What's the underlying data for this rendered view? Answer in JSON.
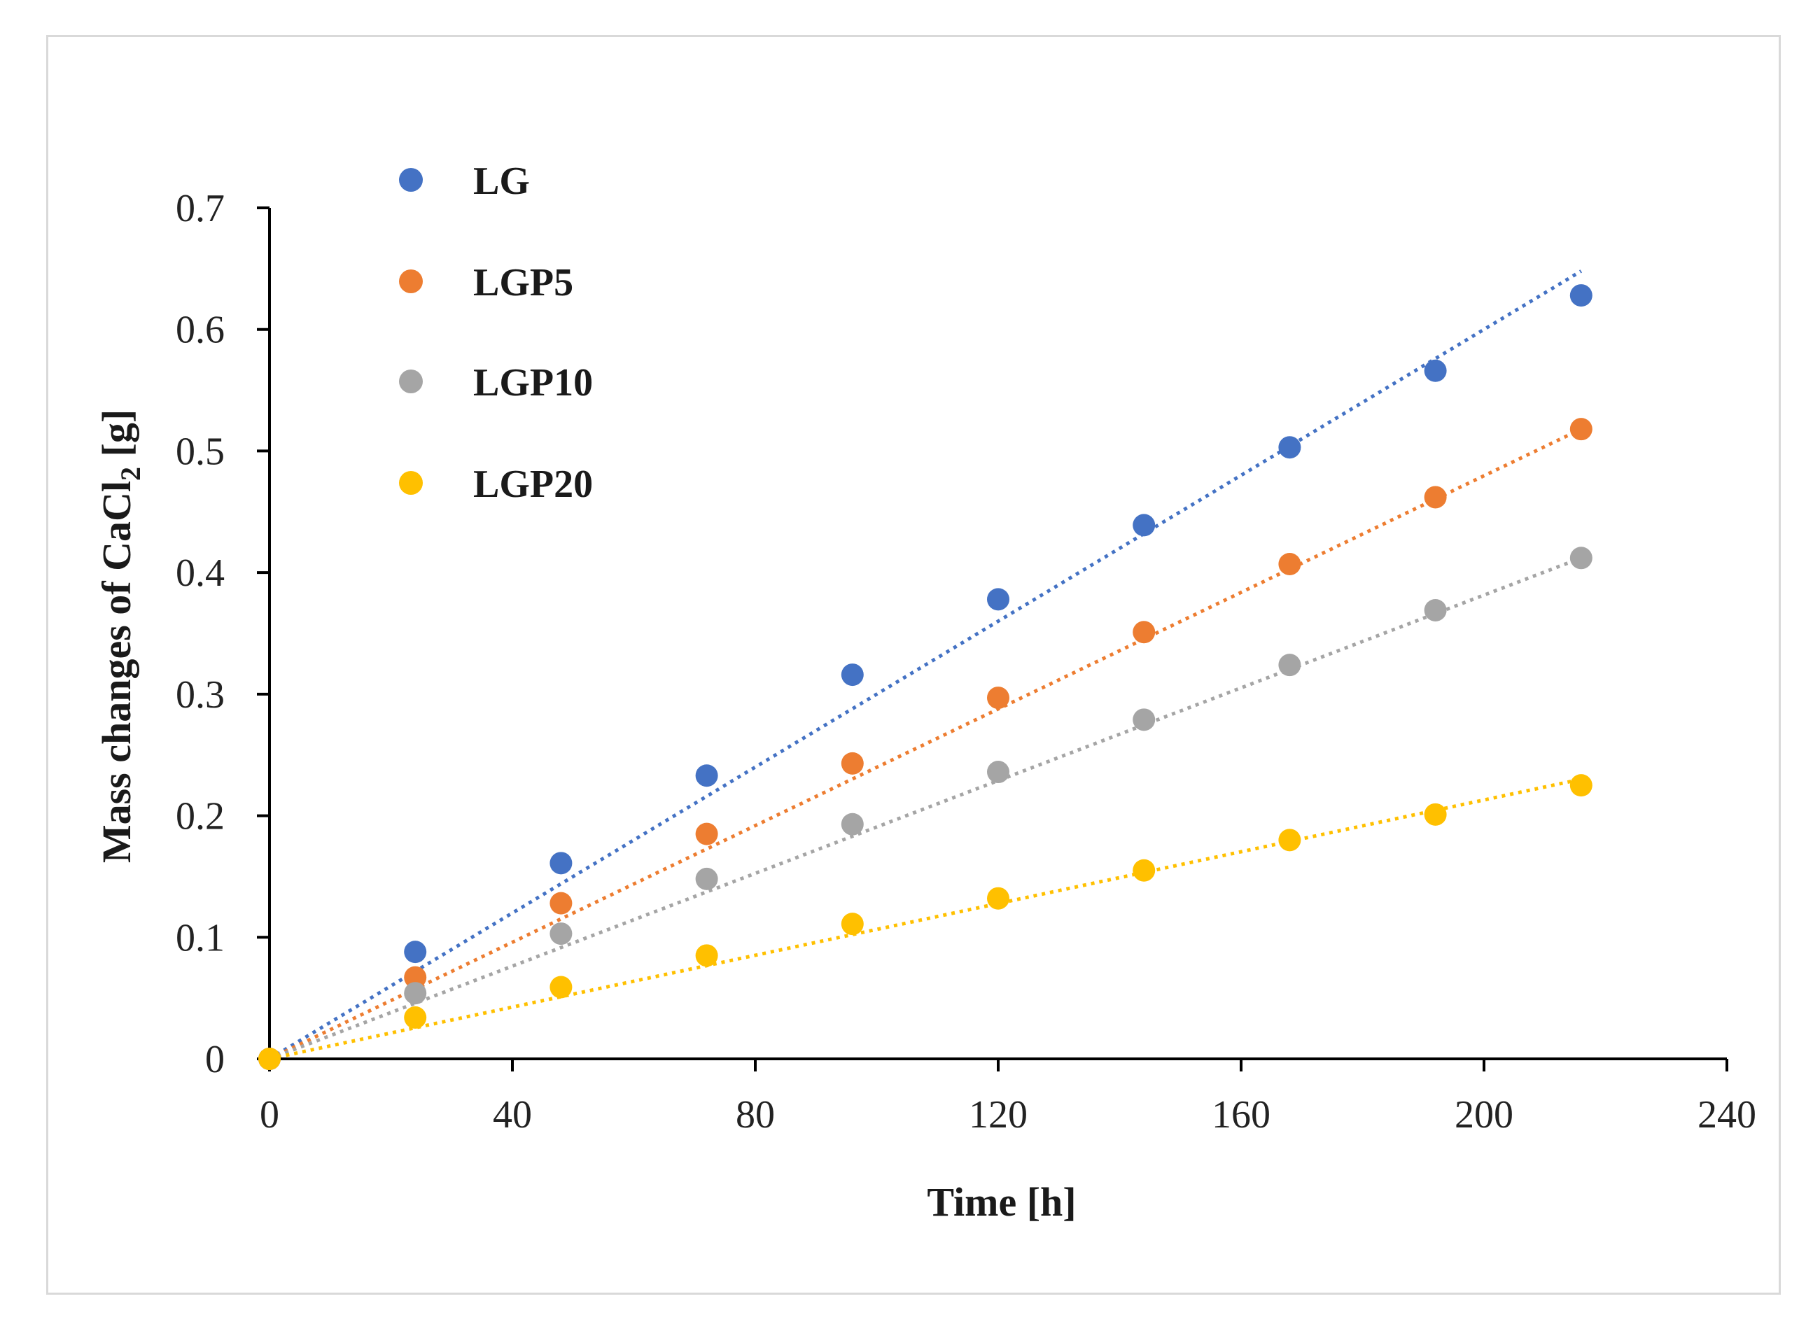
{
  "chart_data": {
    "type": "scatter",
    "title": "",
    "xlabel": "Time [h]",
    "ylabel": {
      "prefix": "Mass changes of CaCl",
      "subscript": "2",
      "suffix": " [g]"
    },
    "xlim": [
      0,
      240
    ],
    "ylim": [
      0,
      0.7
    ],
    "x_ticks": [
      "0",
      "40",
      "80",
      "120",
      "160",
      "200",
      "240"
    ],
    "y_ticks": [
      "0",
      "0.1",
      "0.2",
      "0.3",
      "0.4",
      "0.5",
      "0.6",
      "0.7"
    ],
    "grid": false,
    "legend_position": "top-left",
    "trendline": "linear, dotted",
    "x": [
      0,
      24,
      48,
      72,
      96,
      120,
      144,
      168,
      192,
      216
    ],
    "series": [
      {
        "name": "LG",
        "color": "#4472c4",
        "values": [
          0,
          0.088,
          0.161,
          0.233,
          0.316,
          0.378,
          0.439,
          0.503,
          0.566,
          0.628
        ],
        "trend": [
          [
            0,
            0
          ],
          [
            216,
            0.648
          ]
        ]
      },
      {
        "name": "LGP5",
        "color": "#ed7d31",
        "values": [
          0,
          0.067,
          0.128,
          0.185,
          0.243,
          0.297,
          0.351,
          0.407,
          0.462,
          0.518
        ],
        "trend": [
          [
            0,
            0
          ],
          [
            216,
            0.518
          ]
        ]
      },
      {
        "name": "LGP10",
        "color": "#a5a5a5",
        "values": [
          0,
          0.054,
          0.103,
          0.148,
          0.193,
          0.236,
          0.279,
          0.324,
          0.369,
          0.412
        ],
        "trend": [
          [
            0,
            0
          ],
          [
            216,
            0.412
          ]
        ]
      },
      {
        "name": "LGP20",
        "color": "#ffc000",
        "values": [
          0,
          0.034,
          0.059,
          0.085,
          0.111,
          0.132,
          0.155,
          0.18,
          0.201,
          0.225
        ],
        "trend": [
          [
            0,
            0
          ],
          [
            216,
            0.23
          ]
        ]
      }
    ]
  }
}
